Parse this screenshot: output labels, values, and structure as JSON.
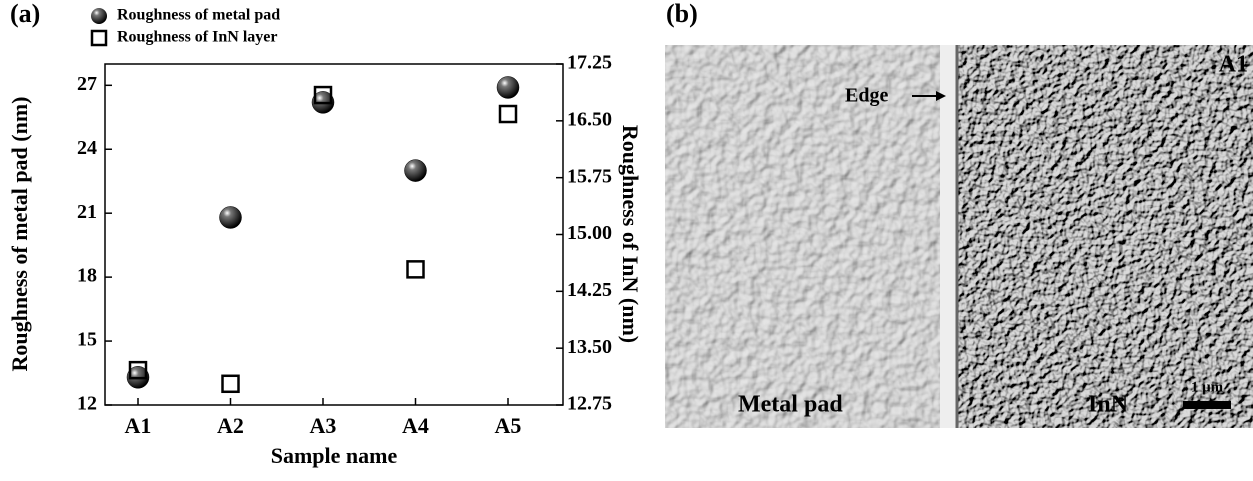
{
  "chart_data": {
    "type": "scatter",
    "panel_label": "(a)",
    "x_label": "Sample name",
    "y_label": "Roughness of metal pad (nm)",
    "y2_label": "Roughness of InN (nm)",
    "categories": [
      "A1",
      "A2",
      "A3",
      "A4",
      "A5"
    ],
    "series": [
      {
        "name": "Roughness of metal pad",
        "color": "#000000",
        "marker": "sphere",
        "values": [
          13.3,
          20.8,
          26.2,
          23.0,
          26.9
        ]
      },
      {
        "name": "Roughness of InN layer",
        "color": "#000000",
        "marker": "open-square",
        "axis": "y2",
        "values": [
          13.21,
          13.03,
          16.84,
          14.54,
          16.59
        ]
      }
    ],
    "ylim": [
      12,
      28
    ],
    "yticks": [
      12,
      15,
      18,
      21,
      24,
      27
    ],
    "y2lim": [
      12.75,
      17.25
    ],
    "y2ticks": [
      12.75,
      {
        "value": 13.5,
        "label": "13.50"
      },
      14.25,
      {
        "value": 15,
        "label": "15.00"
      },
      15.75,
      {
        "value": 16.5,
        "label": "16.50"
      },
      17.25
    ],
    "legend": "top-left"
  },
  "image_panel": {
    "panel_label": "(b)",
    "sample": "A1",
    "edge_label": "Edge",
    "left_region": "Metal pad",
    "right_region": "InN",
    "scale_bar": "1 μm"
  }
}
